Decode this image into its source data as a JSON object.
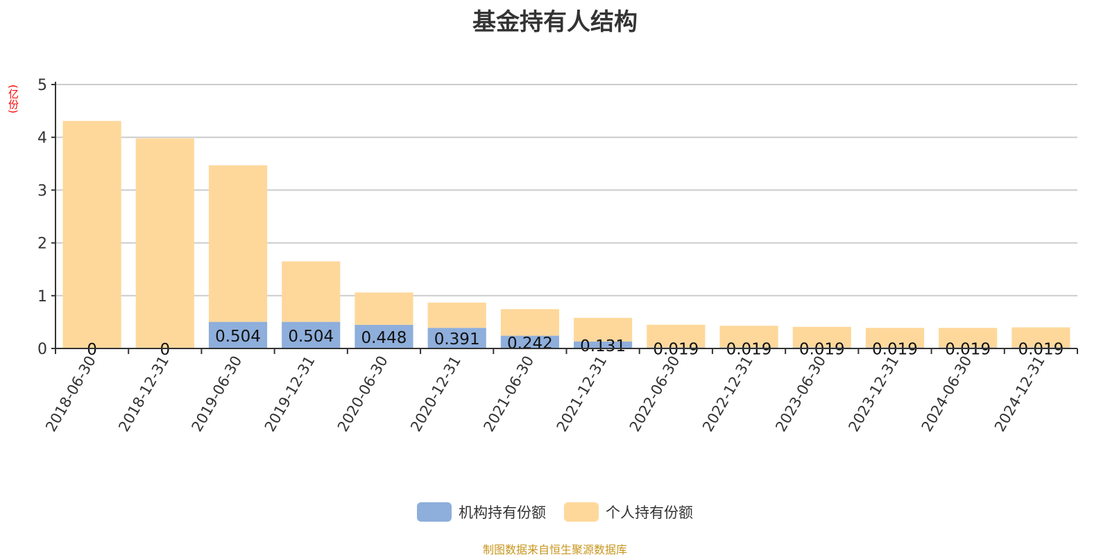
{
  "title": "基金持有人结构",
  "unit": "(亿份)",
  "footer": "制图数据来自恒生聚源数据库",
  "colors": {
    "institution": "#8eaedb",
    "individual": "#fed89b"
  },
  "chart_data": {
    "type": "bar",
    "stacked": true,
    "title": "基金持有人结构",
    "ylabel": "(亿份)",
    "ylim": [
      0,
      5
    ],
    "yticks": [
      0,
      1,
      2,
      3,
      4,
      5
    ],
    "grid": true,
    "legend_position": "bottom",
    "categories": [
      "2018-06-30",
      "2018-12-31",
      "2019-06-30",
      "2019-12-31",
      "2020-06-30",
      "2020-12-31",
      "2021-06-30",
      "2021-12-31",
      "2022-06-30",
      "2022-12-31",
      "2023-06-30",
      "2023-12-31",
      "2024-06-30",
      "2024-12-31"
    ],
    "series": [
      {
        "name": "机构持有份额",
        "values": [
          0,
          0,
          0.504,
          0.504,
          0.448,
          0.391,
          0.242,
          0.131,
          0.019,
          0.019,
          0.019,
          0.019,
          0.019,
          0.019
        ],
        "labels": [
          "0",
          "0",
          "0.504",
          "0.504",
          "0.448",
          "0.391",
          "0.242",
          "0.131",
          "0.019",
          "0.019",
          "0.019",
          "0.019",
          "0.019",
          "0.019"
        ]
      },
      {
        "name": "个人持有份额",
        "values": [
          4.31,
          3.98,
          2.966,
          1.146,
          0.612,
          0.479,
          0.503,
          0.449,
          0.431,
          0.411,
          0.391,
          0.371,
          0.371,
          0.381
        ]
      }
    ]
  }
}
